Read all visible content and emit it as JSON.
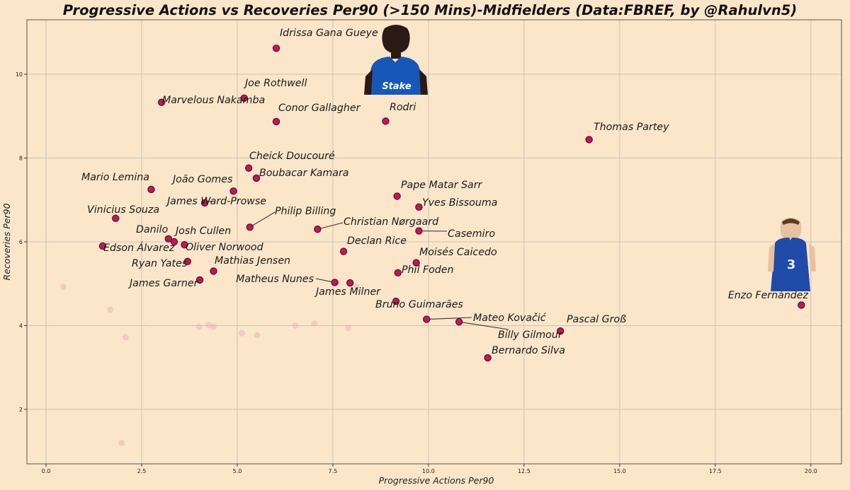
{
  "chart_data": {
    "type": "scatter",
    "title": "Progressive Actions vs Recoveries Per90 (>150 Mins)-Midfielders (Data:FBREF, by @Rahulvn5)",
    "xlabel": "Progressive Actions Per90",
    "ylabel": "Recoveries Per90",
    "xlim": [
      -0.5,
      20.8
    ],
    "ylim": [
      0.7,
      11.3
    ],
    "xticks": [
      0.0,
      2.5,
      5.0,
      7.5,
      10.0,
      12.5,
      15.0,
      17.5,
      20.0
    ],
    "xtick_labels": [
      "0.0",
      "2.5",
      "5.0",
      "7.5",
      "10.0",
      "12.5",
      "15.0",
      "17.5",
      "20.0"
    ],
    "yticks": [
      2,
      4,
      6,
      8,
      10
    ],
    "ytick_labels": [
      "2",
      "4",
      "6",
      "8",
      "10"
    ],
    "grid": true,
    "colors": {
      "background": "#fce6c9",
      "highlight_fill": "#c2185b",
      "highlight_edge": "#5a1030",
      "faded_point": "#e8b4b8",
      "grid": "#c9c3bb"
    },
    "highlighted": [
      {
        "label": "Idrissa Gana Gueye",
        "x": 6.02,
        "y": 10.62
      },
      {
        "label": "Joe Rothwell",
        "x": 5.18,
        "y": 9.43
      },
      {
        "label": "Marvelous Nakamba",
        "x": 3.02,
        "y": 9.33
      },
      {
        "label": "Conor Gallagher",
        "x": 6.02,
        "y": 8.87
      },
      {
        "label": "Rodri",
        "x": 8.88,
        "y": 8.88
      },
      {
        "label": "Thomas Partey",
        "x": 14.2,
        "y": 8.44
      },
      {
        "label": "Cheick Doucouré",
        "x": 5.3,
        "y": 7.76
      },
      {
        "label": "Boubacar Kamara",
        "x": 5.5,
        "y": 7.52
      },
      {
        "label": "Mario Lemina",
        "x": 2.75,
        "y": 7.25
      },
      {
        "label": "João Gomes",
        "x": 4.9,
        "y": 7.21
      },
      {
        "label": "Pape Matar Sarr",
        "x": 9.18,
        "y": 7.09
      },
      {
        "label": "James Ward-Prowse",
        "x": 4.15,
        "y": 6.93
      },
      {
        "label": "Yves Bissouma",
        "x": 9.75,
        "y": 6.83
      },
      {
        "label": "Vinicius Souza",
        "x": 1.82,
        "y": 6.56
      },
      {
        "label": "Philip Billing",
        "x": 5.33,
        "y": 6.35
      },
      {
        "label": "Christian Nørgaard",
        "x": 7.1,
        "y": 6.3
      },
      {
        "label": "Casemiro",
        "x": 9.75,
        "y": 6.26
      },
      {
        "label": "Danilo",
        "x": 3.2,
        "y": 6.07
      },
      {
        "label": "Josh Cullen",
        "x": 3.35,
        "y": 6.0
      },
      {
        "label": "Oliver Norwood",
        "x": 3.62,
        "y": 5.93
      },
      {
        "label": "Edson Álvarez",
        "x": 1.48,
        "y": 5.9
      },
      {
        "label": "Declan Rice",
        "x": 7.78,
        "y": 5.77
      },
      {
        "label": "Ryan Yates",
        "x": 3.7,
        "y": 5.53
      },
      {
        "label": "Moisés Caicedo",
        "x": 9.68,
        "y": 5.5
      },
      {
        "label": "Mathias Jensen",
        "x": 4.38,
        "y": 5.3
      },
      {
        "label": "Phil Foden",
        "x": 9.2,
        "y": 5.26
      },
      {
        "label": "James Garner",
        "x": 4.02,
        "y": 5.09
      },
      {
        "label": "Matheus Nunes",
        "x": 7.55,
        "y": 5.03
      },
      {
        "label": "James Milner",
        "x": 7.95,
        "y": 5.02
      },
      {
        "label": "Enzo Fernández",
        "x": 19.75,
        "y": 4.49
      },
      {
        "label": "Bruno Guimarães",
        "x": 9.15,
        "y": 4.58
      },
      {
        "label": "Mateo Kovačić",
        "x": 9.95,
        "y": 4.15
      },
      {
        "label": "Billy Gilmour",
        "x": 10.8,
        "y": 4.09
      },
      {
        "label": "Pascal Groß",
        "x": 13.45,
        "y": 3.87
      },
      {
        "label": "Bernardo Silva",
        "x": 11.55,
        "y": 3.23
      }
    ],
    "faded": [
      {
        "x": 0.45,
        "y": 4.93
      },
      {
        "x": 1.68,
        "y": 4.38
      },
      {
        "x": 2.08,
        "y": 3.72
      },
      {
        "x": 1.98,
        "y": 1.2
      },
      {
        "x": 4.0,
        "y": 3.97
      },
      {
        "x": 4.25,
        "y": 4.01
      },
      {
        "x": 4.38,
        "y": 3.98
      },
      {
        "x": 5.12,
        "y": 3.82
      },
      {
        "x": 5.52,
        "y": 3.77
      },
      {
        "x": 6.52,
        "y": 4.0
      },
      {
        "x": 7.02,
        "y": 4.05
      },
      {
        "x": 7.9,
        "y": 3.95
      },
      {
        "x": 8.12,
        "y": 4.93
      }
    ]
  }
}
